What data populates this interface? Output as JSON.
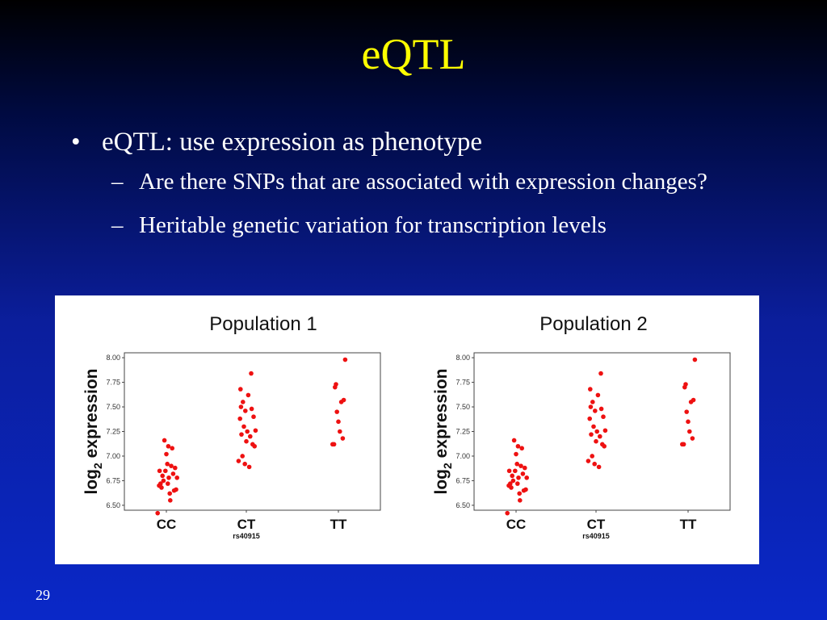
{
  "slide": {
    "title": "eQTL",
    "bullet_mark": "•",
    "sub_mark": "–",
    "bullet": "eQTL: use expression as phenotype",
    "subbullets": [
      "Are there SNPs that are associated with expression changes?",
      "Heritable genetic variation for transcription levels"
    ],
    "page_number": "29"
  },
  "chart_data": [
    {
      "type": "scatter",
      "title": "Population 1",
      "xlabel": "rs40915",
      "ylabel_main": "log",
      "ylabel_sub": "2",
      "ylabel_rest": " expression",
      "categories": [
        "CC",
        "CT",
        "TT"
      ],
      "ylim": [
        6.45,
        8.05
      ],
      "yticks": [
        8.0,
        7.75,
        7.5,
        7.25,
        7.0,
        6.75,
        6.5
      ],
      "ytick_labels": [
        "8.00",
        "7.75",
        "7.50",
        "7.25",
        "7.00",
        "6.75",
        "6.50"
      ],
      "grid": false,
      "color": "#ee1111",
      "points": [
        {
          "category": "CC",
          "jitter": -0.18,
          "y": 6.42
        },
        {
          "category": "CC",
          "jitter": -0.15,
          "y": 6.7
        },
        {
          "category": "CC",
          "jitter": -0.12,
          "y": 6.72
        },
        {
          "category": "CC",
          "jitter": -0.1,
          "y": 6.68
        },
        {
          "category": "CC",
          "jitter": -0.08,
          "y": 6.8
        },
        {
          "category": "CC",
          "jitter": -0.06,
          "y": 6.75
        },
        {
          "category": "CC",
          "jitter": -0.04,
          "y": 7.16
        },
        {
          "category": "CC",
          "jitter": -0.02,
          "y": 6.85
        },
        {
          "category": "CC",
          "jitter": 0.0,
          "y": 7.02
        },
        {
          "category": "CC",
          "jitter": 0.02,
          "y": 6.92
        },
        {
          "category": "CC",
          "jitter": 0.04,
          "y": 7.1
        },
        {
          "category": "CC",
          "jitter": 0.05,
          "y": 6.78
        },
        {
          "category": "CC",
          "jitter": 0.07,
          "y": 6.62
        },
        {
          "category": "CC",
          "jitter": 0.08,
          "y": 6.55
        },
        {
          "category": "CC",
          "jitter": 0.1,
          "y": 6.9
        },
        {
          "category": "CC",
          "jitter": 0.12,
          "y": 7.08
        },
        {
          "category": "CC",
          "jitter": 0.14,
          "y": 6.82
        },
        {
          "category": "CC",
          "jitter": 0.16,
          "y": 6.65
        },
        {
          "category": "CC",
          "jitter": 0.18,
          "y": 6.88
        },
        {
          "category": "CC",
          "jitter": 0.2,
          "y": 6.66
        },
        {
          "category": "CC",
          "jitter": 0.22,
          "y": 6.78
        },
        {
          "category": "CC",
          "jitter": -0.14,
          "y": 6.85
        },
        {
          "category": "CC",
          "jitter": 0.03,
          "y": 6.72
        },
        {
          "category": "CT",
          "jitter": -0.16,
          "y": 6.95
        },
        {
          "category": "CT",
          "jitter": -0.13,
          "y": 7.38
        },
        {
          "category": "CT",
          "jitter": -0.12,
          "y": 7.68
        },
        {
          "category": "CT",
          "jitter": -0.1,
          "y": 7.22
        },
        {
          "category": "CT",
          "jitter": -0.08,
          "y": 7.0
        },
        {
          "category": "CT",
          "jitter": -0.07,
          "y": 7.55
        },
        {
          "category": "CT",
          "jitter": -0.05,
          "y": 7.3
        },
        {
          "category": "CT",
          "jitter": -0.03,
          "y": 6.92
        },
        {
          "category": "CT",
          "jitter": -0.02,
          "y": 7.46
        },
        {
          "category": "CT",
          "jitter": 0.0,
          "y": 7.15
        },
        {
          "category": "CT",
          "jitter": 0.02,
          "y": 7.25
        },
        {
          "category": "CT",
          "jitter": 0.04,
          "y": 7.62
        },
        {
          "category": "CT",
          "jitter": 0.06,
          "y": 6.89
        },
        {
          "category": "CT",
          "jitter": 0.08,
          "y": 7.2
        },
        {
          "category": "CT",
          "jitter": 0.1,
          "y": 7.84
        },
        {
          "category": "CT",
          "jitter": 0.11,
          "y": 7.48
        },
        {
          "category": "CT",
          "jitter": 0.13,
          "y": 7.12
        },
        {
          "category": "CT",
          "jitter": 0.15,
          "y": 7.4
        },
        {
          "category": "CT",
          "jitter": 0.17,
          "y": 7.1
        },
        {
          "category": "CT",
          "jitter": 0.19,
          "y": 7.26
        },
        {
          "category": "CT",
          "jitter": -0.11,
          "y": 7.5
        },
        {
          "category": "TT",
          "jitter": -0.12,
          "y": 7.12
        },
        {
          "category": "TT",
          "jitter": -0.09,
          "y": 7.12
        },
        {
          "category": "TT",
          "jitter": -0.07,
          "y": 7.7
        },
        {
          "category": "TT",
          "jitter": -0.05,
          "y": 7.73
        },
        {
          "category": "TT",
          "jitter": -0.03,
          "y": 7.45
        },
        {
          "category": "TT",
          "jitter": 0.0,
          "y": 7.35
        },
        {
          "category": "TT",
          "jitter": 0.03,
          "y": 7.25
        },
        {
          "category": "TT",
          "jitter": 0.06,
          "y": 7.55
        },
        {
          "category": "TT",
          "jitter": 0.09,
          "y": 7.18
        },
        {
          "category": "TT",
          "jitter": 0.11,
          "y": 7.57
        },
        {
          "category": "TT",
          "jitter": 0.14,
          "y": 7.98
        }
      ]
    },
    {
      "type": "scatter",
      "title": "Population 2",
      "xlabel": "rs40915",
      "ylabel_main": "log",
      "ylabel_sub": "2",
      "ylabel_rest": " expression",
      "categories": [
        "CC",
        "CT",
        "TT"
      ],
      "ylim": [
        6.45,
        8.05
      ],
      "yticks": [
        8.0,
        7.75,
        7.5,
        7.25,
        7.0,
        6.75,
        6.5
      ],
      "ytick_labels": [
        "8.00",
        "7.75",
        "7.50",
        "7.25",
        "7.00",
        "6.75",
        "6.50"
      ],
      "grid": false,
      "color": "#ee1111",
      "points": [
        {
          "category": "CC",
          "jitter": -0.18,
          "y": 6.42
        },
        {
          "category": "CC",
          "jitter": -0.15,
          "y": 6.7
        },
        {
          "category": "CC",
          "jitter": -0.12,
          "y": 6.72
        },
        {
          "category": "CC",
          "jitter": -0.1,
          "y": 6.68
        },
        {
          "category": "CC",
          "jitter": -0.08,
          "y": 6.8
        },
        {
          "category": "CC",
          "jitter": -0.06,
          "y": 6.75
        },
        {
          "category": "CC",
          "jitter": -0.04,
          "y": 7.16
        },
        {
          "category": "CC",
          "jitter": -0.02,
          "y": 6.85
        },
        {
          "category": "CC",
          "jitter": 0.0,
          "y": 7.02
        },
        {
          "category": "CC",
          "jitter": 0.02,
          "y": 6.92
        },
        {
          "category": "CC",
          "jitter": 0.04,
          "y": 7.1
        },
        {
          "category": "CC",
          "jitter": 0.05,
          "y": 6.78
        },
        {
          "category": "CC",
          "jitter": 0.07,
          "y": 6.62
        },
        {
          "category": "CC",
          "jitter": 0.08,
          "y": 6.55
        },
        {
          "category": "CC",
          "jitter": 0.1,
          "y": 6.9
        },
        {
          "category": "CC",
          "jitter": 0.12,
          "y": 7.08
        },
        {
          "category": "CC",
          "jitter": 0.14,
          "y": 6.82
        },
        {
          "category": "CC",
          "jitter": 0.16,
          "y": 6.65
        },
        {
          "category": "CC",
          "jitter": 0.18,
          "y": 6.88
        },
        {
          "category": "CC",
          "jitter": 0.2,
          "y": 6.66
        },
        {
          "category": "CC",
          "jitter": 0.22,
          "y": 6.78
        },
        {
          "category": "CC",
          "jitter": -0.14,
          "y": 6.85
        },
        {
          "category": "CC",
          "jitter": 0.03,
          "y": 6.72
        },
        {
          "category": "CT",
          "jitter": -0.16,
          "y": 6.95
        },
        {
          "category": "CT",
          "jitter": -0.13,
          "y": 7.38
        },
        {
          "category": "CT",
          "jitter": -0.12,
          "y": 7.68
        },
        {
          "category": "CT",
          "jitter": -0.1,
          "y": 7.22
        },
        {
          "category": "CT",
          "jitter": -0.08,
          "y": 7.0
        },
        {
          "category": "CT",
          "jitter": -0.07,
          "y": 7.55
        },
        {
          "category": "CT",
          "jitter": -0.05,
          "y": 7.3
        },
        {
          "category": "CT",
          "jitter": -0.03,
          "y": 6.92
        },
        {
          "category": "CT",
          "jitter": -0.02,
          "y": 7.46
        },
        {
          "category": "CT",
          "jitter": 0.0,
          "y": 7.15
        },
        {
          "category": "CT",
          "jitter": 0.02,
          "y": 7.25
        },
        {
          "category": "CT",
          "jitter": 0.04,
          "y": 7.62
        },
        {
          "category": "CT",
          "jitter": 0.06,
          "y": 6.89
        },
        {
          "category": "CT",
          "jitter": 0.08,
          "y": 7.2
        },
        {
          "category": "CT",
          "jitter": 0.1,
          "y": 7.84
        },
        {
          "category": "CT",
          "jitter": 0.11,
          "y": 7.48
        },
        {
          "category": "CT",
          "jitter": 0.13,
          "y": 7.12
        },
        {
          "category": "CT",
          "jitter": 0.15,
          "y": 7.4
        },
        {
          "category": "CT",
          "jitter": 0.17,
          "y": 7.1
        },
        {
          "category": "CT",
          "jitter": 0.19,
          "y": 7.26
        },
        {
          "category": "CT",
          "jitter": -0.11,
          "y": 7.5
        },
        {
          "category": "TT",
          "jitter": -0.12,
          "y": 7.12
        },
        {
          "category": "TT",
          "jitter": -0.09,
          "y": 7.12
        },
        {
          "category": "TT",
          "jitter": -0.07,
          "y": 7.7
        },
        {
          "category": "TT",
          "jitter": -0.05,
          "y": 7.73
        },
        {
          "category": "TT",
          "jitter": -0.03,
          "y": 7.45
        },
        {
          "category": "TT",
          "jitter": 0.0,
          "y": 7.35
        },
        {
          "category": "TT",
          "jitter": 0.03,
          "y": 7.25
        },
        {
          "category": "TT",
          "jitter": 0.06,
          "y": 7.55
        },
        {
          "category": "TT",
          "jitter": 0.09,
          "y": 7.18
        },
        {
          "category": "TT",
          "jitter": 0.11,
          "y": 7.57
        },
        {
          "category": "TT",
          "jitter": 0.14,
          "y": 7.98
        }
      ]
    }
  ]
}
